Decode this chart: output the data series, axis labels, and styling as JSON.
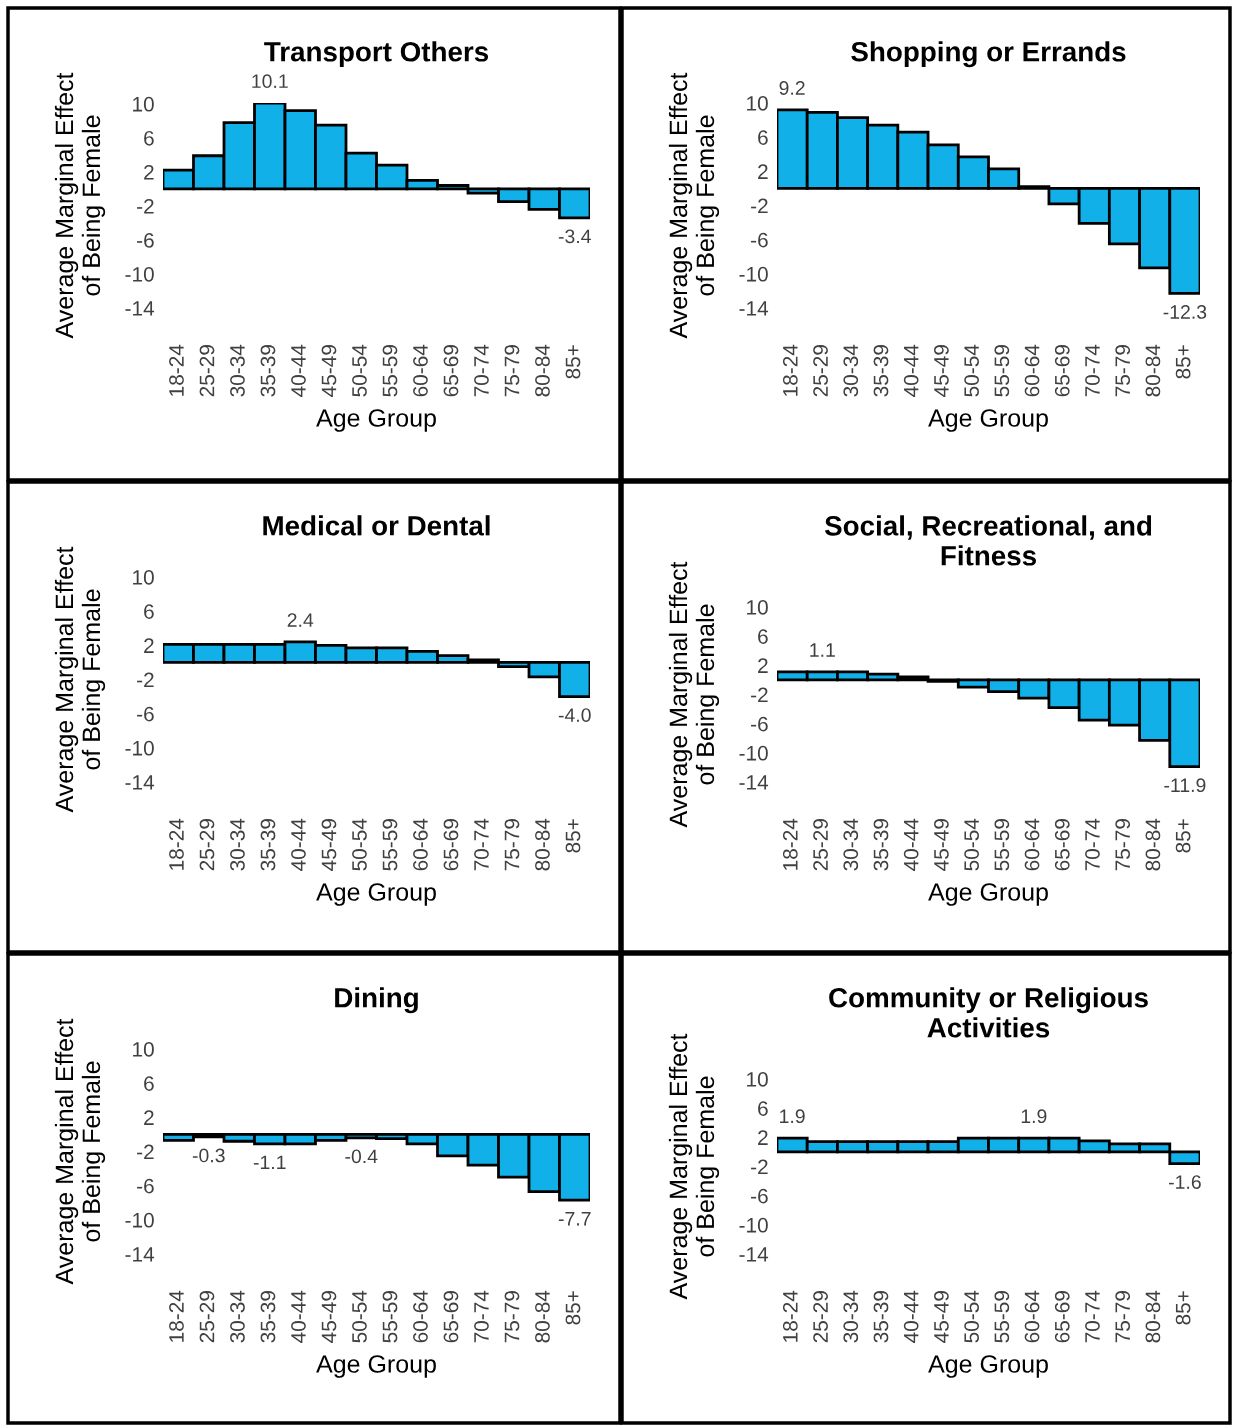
{
  "chart_data": [
    {
      "type": "bar",
      "title": "Transport Others",
      "xlabel": "Age Group",
      "ylabel": "Average Marginal Effect\nof Being Female",
      "categories": [
        "18-24",
        "25-29",
        "30-34",
        "35-39",
        "40-44",
        "45-49",
        "50-54",
        "55-59",
        "60-64",
        "65-69",
        "70-74",
        "75-79",
        "80-84",
        "85+"
      ],
      "color": "#12b0e8",
      "values": [
        2.2,
        3.9,
        7.8,
        10.1,
        9.2,
        7.5,
        4.2,
        2.8,
        1.0,
        0.4,
        -0.5,
        -1.5,
        -2.4,
        -3.4
      ],
      "value_labels": [
        null,
        null,
        null,
        "10.1",
        null,
        null,
        null,
        null,
        null,
        null,
        null,
        null,
        null,
        "-3.4"
      ],
      "ylim": [
        -14,
        10.1
      ],
      "yticks": [
        -14,
        -10,
        -6,
        -2,
        2,
        6,
        10
      ],
      "grid": false
    },
    {
      "type": "bar",
      "title": "Shopping or Errands",
      "xlabel": "Age Group",
      "ylabel": "Average Marginal Effect\nof Being Female",
      "categories": [
        "18-24",
        "25-29",
        "30-34",
        "35-39",
        "40-44",
        "45-49",
        "50-54",
        "55-59",
        "60-64",
        "65-69",
        "70-74",
        "75-79",
        "80-84",
        "85+"
      ],
      "color": "#12b0e8",
      "values": [
        9.2,
        8.9,
        8.3,
        7.4,
        6.6,
        5.1,
        3.7,
        2.3,
        0.2,
        -1.8,
        -4.1,
        -6.5,
        -9.3,
        -12.3
      ],
      "value_labels": [
        "9.2",
        null,
        null,
        null,
        null,
        null,
        null,
        null,
        null,
        null,
        null,
        null,
        null,
        "-12.3"
      ],
      "ylim": [
        -14,
        10
      ],
      "yticks": [
        -14,
        -10,
        -6,
        -2,
        2,
        6,
        10
      ],
      "grid": false
    },
    {
      "type": "bar",
      "title": "Medical or Dental",
      "xlabel": "Age Group",
      "ylabel": "Average Marginal Effect\nof Being Female",
      "categories": [
        "18-24",
        "25-29",
        "30-34",
        "35-39",
        "40-44",
        "45-49",
        "50-54",
        "55-59",
        "60-64",
        "65-69",
        "70-74",
        "75-79",
        "80-84",
        "85+"
      ],
      "color": "#12b0e8",
      "values": [
        2.1,
        2.1,
        2.1,
        2.1,
        2.4,
        2.0,
        1.7,
        1.7,
        1.3,
        0.8,
        0.3,
        -0.5,
        -1.7,
        -4.0
      ],
      "value_labels": [
        null,
        null,
        null,
        null,
        "2.4",
        null,
        null,
        null,
        null,
        null,
        null,
        null,
        null,
        "-4.0"
      ],
      "ylim": [
        -14,
        10
      ],
      "yticks": [
        -14,
        -10,
        -6,
        -2,
        2,
        6,
        10
      ],
      "grid": false
    },
    {
      "type": "bar",
      "title": "Social, Recreational, and\nFitness",
      "xlabel": "Age Group",
      "ylabel": "Average Marginal Effect\nof Being Female",
      "categories": [
        "18-24",
        "25-29",
        "30-34",
        "35-39",
        "40-44",
        "45-49",
        "50-54",
        "55-59",
        "60-64",
        "65-69",
        "70-74",
        "75-79",
        "80-84",
        "85+"
      ],
      "color": "#12b0e8",
      "values": [
        1.1,
        1.1,
        1.1,
        0.8,
        0.4,
        -0.2,
        -1.0,
        -1.6,
        -2.5,
        -3.8,
        -5.5,
        -6.2,
        -8.3,
        -11.9
      ],
      "value_labels": [
        null,
        "1.1",
        null,
        null,
        null,
        null,
        null,
        null,
        null,
        null,
        null,
        null,
        null,
        "-11.9"
      ],
      "ylim": [
        -14,
        10
      ],
      "yticks": [
        -14,
        -10,
        -6,
        -2,
        2,
        6,
        10
      ],
      "grid": false
    },
    {
      "type": "bar",
      "title": "Dining",
      "xlabel": "Age Group",
      "ylabel": "Average Marginal Effect\nof Being Female",
      "categories": [
        "18-24",
        "25-29",
        "30-34",
        "35-39",
        "40-44",
        "45-49",
        "50-54",
        "55-59",
        "60-64",
        "65-69",
        "70-74",
        "75-79",
        "80-84",
        "85+"
      ],
      "color": "#12b0e8",
      "values": [
        -0.7,
        -0.3,
        -0.8,
        -1.1,
        -1.1,
        -0.7,
        -0.4,
        -0.5,
        -1.1,
        -2.5,
        -3.6,
        -5.0,
        -6.7,
        -7.7
      ],
      "value_labels": [
        null,
        "-0.3",
        null,
        "-1.1",
        null,
        null,
        "-0.4",
        null,
        null,
        null,
        null,
        null,
        null,
        "-7.7"
      ],
      "ylim": [
        -14,
        10
      ],
      "yticks": [
        -14,
        -10,
        -6,
        -2,
        2,
        6,
        10
      ],
      "grid": false
    },
    {
      "type": "bar",
      "title": "Community or Religious\nActivities",
      "xlabel": "Age Group",
      "ylabel": "Average Marginal Effect\nof Being Female",
      "categories": [
        "18-24",
        "25-29",
        "30-34",
        "35-39",
        "40-44",
        "45-49",
        "50-54",
        "55-59",
        "60-64",
        "65-69",
        "70-74",
        "75-79",
        "80-84",
        "85+"
      ],
      "color": "#12b0e8",
      "values": [
        1.9,
        1.4,
        1.4,
        1.4,
        1.4,
        1.4,
        1.9,
        1.9,
        1.9,
        1.9,
        1.5,
        1.1,
        1.1,
        -1.6
      ],
      "value_labels": [
        "1.9",
        null,
        null,
        null,
        null,
        null,
        null,
        null,
        "1.9",
        null,
        null,
        null,
        null,
        "-1.6"
      ],
      "ylim": [
        -14,
        10
      ],
      "yticks": [
        -14,
        -10,
        -6,
        -2,
        2,
        6,
        10
      ],
      "grid": false
    }
  ]
}
